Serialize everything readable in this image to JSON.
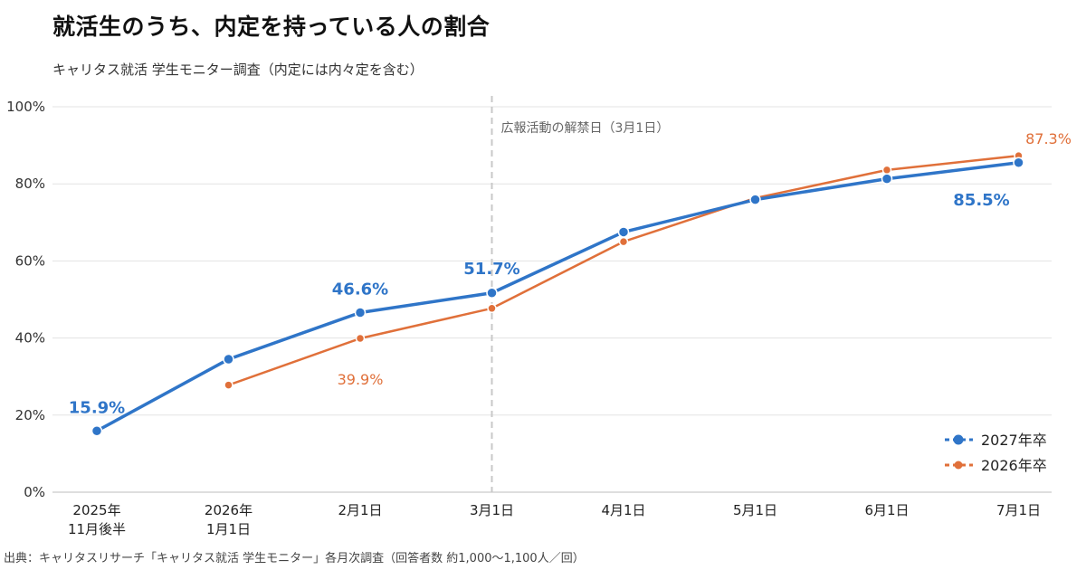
{
  "title": "就活生のうち、内定を持っている人の割合",
  "subtitle": "キャリタス就活 学生モニター調査（内定には内々定を含む）",
  "source": "出典：キャリタスリサーチ「キャリタス就活 学生モニター」各月次調査（回答者数 約1,000〜1,100人／回）",
  "colors": {
    "series_2027": "#2f75c8",
    "series_2026": "#e0703a"
  },
  "chart_data": {
    "type": "line",
    "categories": [
      [
        "2025年",
        "11月後半"
      ],
      [
        "2026年",
        "1月1日"
      ],
      [
        "2月1日"
      ],
      [
        "3月1日"
      ],
      [
        "4月1日"
      ],
      [
        "5月1日"
      ],
      [
        "6月1日"
      ],
      [
        "7月1日"
      ]
    ],
    "ylim": [
      0,
      100
    ],
    "yticks": [
      "0%",
      "20%",
      "40%",
      "60%",
      "80%",
      "100%"
    ],
    "ytick_values": [
      0,
      20,
      40,
      60,
      80,
      100
    ],
    "grid": true,
    "legend_position": "bottom-right",
    "annotation": {
      "category_index": 3,
      "label": "広報活動の解禁日（3月1日）"
    },
    "series": [
      {
        "name": "2027年卒",
        "color": "#2f75c8",
        "values": [
          15.9,
          34.5,
          46.6,
          51.7,
          67.5,
          75.9,
          81.3,
          85.5
        ],
        "labels": [
          {
            "index": 0,
            "text": "15.9%"
          },
          {
            "index": 2,
            "text": "46.6%"
          },
          {
            "index": 3,
            "text": "51.7%"
          },
          {
            "index": 7,
            "text": "85.5%"
          }
        ]
      },
      {
        "name": "2026年卒",
        "color": "#e0703a",
        "values": [
          null,
          27.8,
          39.9,
          47.7,
          65.0,
          76.3,
          83.6,
          87.3
        ],
        "labels": [
          {
            "index": 2,
            "text": "39.9%"
          },
          {
            "index": 7,
            "text": "87.3%"
          }
        ]
      }
    ]
  }
}
